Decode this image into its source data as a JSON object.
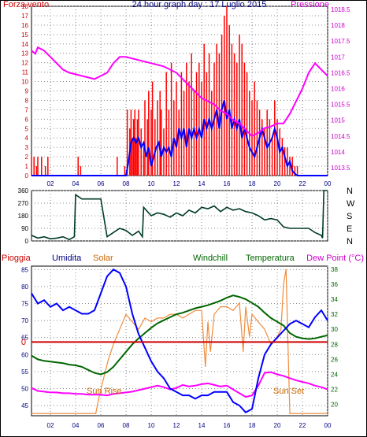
{
  "top": {
    "title": "24 hour graph day : 17 Luglio 2015",
    "left_label": "Forza vento",
    "right_label": "Pressione",
    "wind_ticks": [
      "0",
      "1",
      "2",
      "3",
      "4",
      "5",
      "6",
      "7",
      "8",
      "9",
      "10",
      "11",
      "12",
      "13",
      "14",
      "15",
      "16",
      "17",
      "18"
    ],
    "pressure_ticks": [
      "1013.5",
      "1014",
      "1014.5",
      "1015",
      "1015.5",
      "1016",
      "1016.5",
      "1017",
      "1017.5",
      "1018",
      "1018.5"
    ]
  },
  "middle": {
    "dir_ticks": [
      "360",
      "270",
      "180",
      "90",
      "0"
    ],
    "dir_letters": [
      "N",
      "W",
      "S",
      "E",
      "N"
    ]
  },
  "bottom": {
    "labels": {
      "pioggia": "Pioggia",
      "umidita": "Umidita",
      "solar": "Solar",
      "windchill": "Windchill",
      "temperatura": "Temperatura",
      "dewpoint": "Dew Point (°C)"
    },
    "left_ticks": [
      "45",
      "50",
      "55",
      "60",
      "65",
      "70",
      "75",
      "80",
      "85"
    ],
    "right_ticks": [
      "20",
      "22",
      "24",
      "26",
      "28",
      "30",
      "32",
      "34",
      "36",
      "38"
    ],
    "rain_value_label": "0",
    "sunrise": "Sun Rise",
    "sunset": "Sun Set"
  },
  "x_ticks": [
    "02",
    "04",
    "06",
    "08",
    "10",
    "12",
    "14",
    "16",
    "18",
    "20",
    "22",
    "00"
  ],
  "colors": {
    "frame": "#000000",
    "grid": "#8a8a8a",
    "wind_red": "#ff0000",
    "wind_blue": "#0000ff",
    "pressure": "#ff00ff",
    "direction": "#003a2a",
    "humidity": "#0000ff",
    "temperature": "#006600",
    "solar": "#f08c3c",
    "dewpoint": "#ff00ff",
    "rain": "#cc0000",
    "red_text": "#cc0000",
    "orange_text": "#cc6600",
    "green_text": "#006600",
    "navy_text": "#000080",
    "magenta_text": "#cc00cc"
  },
  "chart_data": [
    {
      "type": "line",
      "x_unit": "hour",
      "xlim": [
        0.5,
        24
      ],
      "y_left_lim": [
        0,
        18
      ],
      "y_right_lim": [
        1013.25,
        1018.6
      ],
      "series": [
        {
          "name": "Forza vento",
          "axis": "left",
          "kind": "gust_bars",
          "x": [
            0.5,
            0.7,
            0.9,
            1.0,
            1.3,
            1.6,
            1.8,
            4.2,
            4.4,
            7.3,
            7.9,
            8.1,
            8.3,
            8.4,
            8.5,
            8.6,
            8.7,
            8.8,
            8.9,
            9.0,
            9.2,
            9.4,
            9.5,
            9.7,
            9.8,
            10.0,
            10.1,
            10.3,
            10.5,
            10.7,
            10.8,
            11.0,
            11.2,
            11.4,
            11.6,
            11.8,
            12.0,
            12.2,
            12.4,
            12.6,
            12.8,
            13.0,
            13.2,
            13.4,
            13.6,
            13.8,
            14.0,
            14.2,
            14.4,
            14.6,
            14.8,
            15.0,
            15.2,
            15.4,
            15.6,
            15.8,
            16.0,
            16.2,
            16.4,
            16.6,
            16.8,
            17.0,
            17.2,
            17.4,
            17.6,
            17.8,
            18.0,
            18.2,
            18.4,
            18.6,
            18.8,
            19.0,
            19.2,
            19.4,
            19.6,
            19.8,
            20.0,
            20.2,
            20.4,
            20.6,
            20.8,
            21.0,
            21.2,
            21.4,
            21.6
          ],
          "values": [
            2,
            2,
            1,
            2,
            2,
            1,
            2,
            2,
            1,
            2,
            1,
            7,
            5,
            7,
            4,
            6,
            7,
            4,
            6,
            7,
            5,
            3,
            8,
            6,
            9,
            7,
            10,
            6,
            8,
            9,
            7,
            5,
            11,
            7,
            12,
            8,
            10,
            7,
            11,
            9,
            12,
            10,
            13,
            9,
            11,
            12,
            10,
            14,
            11,
            13,
            9,
            12,
            14,
            13,
            15,
            17,
            18,
            16,
            14,
            13,
            12,
            15,
            14,
            12,
            11,
            9,
            8,
            10,
            8,
            7,
            6,
            5,
            7,
            6,
            4,
            8,
            6,
            5,
            4,
            3,
            3,
            2,
            2,
            1,
            1
          ]
        },
        {
          "name": "wind_avg",
          "axis": "left",
          "x": [
            0.5,
            8.0,
            8.2,
            8.4,
            8.6,
            8.8,
            9.0,
            9.2,
            9.4,
            9.6,
            9.8,
            10.0,
            10.2,
            10.4,
            10.6,
            10.8,
            11.0,
            11.2,
            11.4,
            11.6,
            11.8,
            12.0,
            12.2,
            12.4,
            12.6,
            12.8,
            13.0,
            13.2,
            13.4,
            13.6,
            13.8,
            14.0,
            14.2,
            14.4,
            14.6,
            14.8,
            15.0,
            15.2,
            15.4,
            15.6,
            15.8,
            16.0,
            16.2,
            16.4,
            16.6,
            16.8,
            17.0,
            17.2,
            17.4,
            17.6,
            17.8,
            18.0,
            18.2,
            18.4,
            18.6,
            18.8,
            19.0,
            19.2,
            19.4,
            19.6,
            19.8,
            20.0,
            20.2,
            20.4,
            20.6,
            20.8,
            21.0,
            21.2,
            21.4,
            21.6,
            24.0
          ],
          "values": [
            0,
            0,
            1.5,
            3.5,
            4,
            3.5,
            4,
            3,
            3.5,
            2,
            3,
            1,
            2,
            3,
            3.5,
            2,
            3,
            2.5,
            3,
            2,
            4,
            3,
            5,
            4,
            5,
            3,
            5,
            4,
            5,
            4,
            5,
            4,
            6,
            5,
            6,
            5,
            6,
            7,
            5,
            7,
            8,
            6,
            7,
            5,
            6,
            5,
            6,
            4,
            5,
            4,
            3,
            2.5,
            2,
            3,
            4,
            5,
            4,
            3,
            3.5,
            4,
            5,
            4,
            2.5,
            3,
            2,
            1,
            1.5,
            0.5,
            0.2,
            0,
            0
          ]
        },
        {
          "name": "Pressione",
          "axis": "right",
          "x": [
            0.5,
            0.8,
            1.0,
            1.5,
            2.0,
            2.5,
            3.0,
            3.5,
            4.0,
            4.5,
            5.0,
            5.5,
            6.0,
            6.5,
            7.0,
            7.5,
            8.0,
            8.5,
            9.0,
            9.5,
            10.0,
            10.5,
            11.0,
            11.5,
            12.0,
            12.5,
            13.0,
            13.5,
            14.0,
            14.5,
            15.0,
            15.5,
            16.0,
            16.5,
            17.0,
            17.5,
            18.0,
            18.5,
            19.0,
            19.5,
            20.0,
            20.5,
            21.0,
            21.5,
            22.0,
            22.5,
            23.0,
            23.5,
            24.0
          ],
          "values": [
            1017.2,
            1017.1,
            1017.3,
            1017.2,
            1017.0,
            1016.8,
            1016.6,
            1016.5,
            1016.45,
            1016.4,
            1016.35,
            1016.3,
            1016.4,
            1016.5,
            1016.8,
            1017.0,
            1017.0,
            1016.95,
            1016.9,
            1016.85,
            1016.8,
            1016.75,
            1016.7,
            1016.6,
            1016.5,
            1016.3,
            1016.1,
            1015.9,
            1015.7,
            1015.6,
            1015.5,
            1015.3,
            1015.2,
            1015.0,
            1014.9,
            1014.7,
            1014.5,
            1014.6,
            1014.75,
            1014.8,
            1014.9,
            1014.9,
            1015.2,
            1015.6,
            1016.0,
            1016.5,
            1016.8,
            1016.6,
            1016.4
          ]
        }
      ]
    },
    {
      "type": "line",
      "x_unit": "hour",
      "xlim": [
        0.5,
        24
      ],
      "ylim": [
        0,
        360
      ],
      "series": [
        {
          "name": "direction",
          "x": [
            0.5,
            1.0,
            1.5,
            2.0,
            2.5,
            3.0,
            3.5,
            3.9,
            4.0,
            4.5,
            5.0,
            5.5,
            5.9,
            6.0,
            6.5,
            7.0,
            7.5,
            8.0,
            8.5,
            9.0,
            9.3,
            9.4,
            10.0,
            10.5,
            11.0,
            11.5,
            12.0,
            12.5,
            13.0,
            13.5,
            14.0,
            14.5,
            15.0,
            15.5,
            16.0,
            16.5,
            17.0,
            17.5,
            18.0,
            18.5,
            19.0,
            19.5,
            20.0,
            20.5,
            21.0,
            21.5,
            22.0,
            22.5,
            23.0,
            23.5,
            23.6,
            23.7,
            24.0
          ],
          "values": [
            40,
            20,
            30,
            15,
            20,
            30,
            10,
            30,
            330,
            300,
            300,
            300,
            300,
            300,
            30,
            60,
            90,
            75,
            40,
            70,
            30,
            240,
            180,
            200,
            190,
            170,
            200,
            180,
            220,
            200,
            240,
            230,
            250,
            210,
            240,
            220,
            230,
            210,
            200,
            180,
            150,
            160,
            150,
            100,
            90,
            90,
            90,
            90,
            60,
            40,
            20,
            360,
            360
          ]
        }
      ]
    },
    {
      "type": "line",
      "x_unit": "hour",
      "xlim": [
        0.5,
        24
      ],
      "y_left_lim": [
        42,
        86
      ],
      "y_right_lim": [
        18.5,
        38.4
      ],
      "series": [
        {
          "name": "Umidita",
          "axis": "left",
          "x": [
            0.5,
            1.0,
            1.5,
            2.0,
            2.5,
            3.0,
            3.5,
            4.0,
            4.5,
            5.0,
            5.5,
            6.0,
            6.5,
            7.0,
            7.5,
            8.0,
            8.5,
            9.0,
            9.5,
            10.0,
            10.5,
            11.0,
            11.5,
            12.0,
            12.5,
            13.0,
            13.5,
            14.0,
            14.5,
            15.0,
            15.5,
            16.0,
            16.5,
            17.0,
            17.5,
            18.0,
            18.5,
            19.0,
            19.5,
            20.0,
            20.5,
            21.0,
            21.5,
            22.0,
            22.5,
            23.0,
            23.5,
            24.0
          ],
          "values": [
            78,
            75,
            76,
            74,
            75,
            73,
            74,
            73,
            72,
            72,
            73,
            78,
            83,
            85,
            84,
            80,
            72,
            66,
            62,
            58,
            55,
            53,
            50,
            49,
            48,
            48,
            47,
            48,
            48,
            49,
            49,
            49,
            46,
            45,
            43,
            44,
            53,
            60,
            63,
            65,
            67,
            69,
            70,
            69,
            68,
            71,
            73,
            70
          ]
        },
        {
          "name": "Temperatura",
          "axis": "right",
          "x": [
            0.5,
            1.0,
            1.5,
            2.0,
            2.5,
            3.0,
            3.5,
            4.0,
            4.5,
            5.0,
            5.5,
            6.0,
            6.5,
            7.0,
            7.5,
            8.0,
            8.5,
            9.0,
            9.5,
            10.0,
            10.5,
            11.0,
            11.5,
            12.0,
            12.5,
            13.0,
            13.5,
            14.0,
            14.5,
            15.0,
            15.5,
            16.0,
            16.5,
            17.0,
            17.5,
            18.0,
            18.5,
            19.0,
            19.5,
            20.0,
            20.5,
            21.0,
            21.5,
            22.0,
            22.5,
            23.0,
            23.5,
            24.0
          ],
          "values": [
            26.5,
            26,
            25.8,
            25.7,
            25.6,
            25.5,
            25.3,
            25.2,
            25.0,
            24.6,
            24.2,
            24.0,
            24.3,
            25.0,
            26.0,
            27.0,
            28.0,
            28.8,
            29.5,
            30.2,
            30.8,
            31.2,
            31.6,
            32.0,
            32.2,
            32.5,
            32.8,
            33.0,
            33.2,
            33.5,
            33.8,
            34.2,
            34.5,
            34.3,
            34.0,
            33.5,
            33.0,
            32.2,
            31.5,
            31.0,
            30.5,
            29.5,
            29.0,
            28.8,
            28.7,
            28.8,
            29.0,
            29.2
          ]
        },
        {
          "name": "Solar",
          "axis": "right",
          "x": [
            0.5,
            5.6,
            5.8,
            6.0,
            6.3,
            6.6,
            7.0,
            7.5,
            8.0,
            8.5,
            9.0,
            9.5,
            10.0,
            10.5,
            11.0,
            11.5,
            12.0,
            12.5,
            13.0,
            13.5,
            14.0,
            14.3,
            14.5,
            14.7,
            15.0,
            15.5,
            16.0,
            16.5,
            17.0,
            17.3,
            17.5,
            17.8,
            18.0,
            18.5,
            19.0,
            19.5,
            20.0,
            20.3,
            20.5,
            20.7,
            20.9,
            21.0,
            24.0
          ],
          "values": [
            18.8,
            18.8,
            20.5,
            22,
            24,
            26,
            28,
            30,
            32,
            31,
            30,
            31.5,
            31,
            31.5,
            31.5,
            32,
            32,
            31.5,
            32,
            32.5,
            32.5,
            25,
            31,
            27,
            32,
            33,
            33,
            32.5,
            33.5,
            27,
            33,
            29,
            32,
            31,
            30,
            28,
            29,
            30,
            36,
            38,
            25,
            18.8,
            18.8
          ]
        },
        {
          "name": "Dew Point (°C)",
          "axis": "right",
          "x": [
            0.5,
            1.0,
            1.5,
            2.0,
            2.5,
            3.0,
            3.5,
            4.0,
            4.5,
            5.0,
            5.5,
            6.0,
            6.5,
            7.0,
            7.5,
            8.0,
            8.5,
            9.0,
            9.5,
            10.0,
            10.5,
            11.0,
            11.5,
            12.0,
            12.5,
            13.0,
            13.5,
            14.0,
            14.5,
            15.0,
            15.5,
            16.0,
            16.5,
            17.0,
            17.5,
            18.0,
            18.5,
            19.0,
            19.5,
            20.0,
            20.5,
            21.0,
            21.5,
            22.0,
            22.5,
            23.0,
            23.5,
            24.0
          ],
          "values": [
            22.2,
            21.8,
            21.7,
            21.6,
            21.6,
            21.5,
            21.5,
            21.4,
            21.4,
            21.3,
            21.3,
            21.3,
            21.2,
            21.4,
            21.5,
            21.6,
            21.7,
            21.9,
            22.1,
            22.3,
            22.5,
            22.3,
            22.0,
            22.2,
            22.6,
            22.4,
            22.5,
            22.7,
            22.8,
            22.6,
            22.4,
            22.5,
            22.0,
            21.5,
            21.0,
            21.2,
            22.5,
            24.2,
            24.3,
            24.0,
            23.8,
            23.5,
            23.2,
            23.0,
            22.8,
            22.5,
            22.3,
            22.0
          ]
        },
        {
          "name": "Pioggia",
          "axis": "right",
          "x": [
            0.5,
            24.0
          ],
          "values": [
            28.3,
            28.3
          ]
        }
      ]
    }
  ]
}
